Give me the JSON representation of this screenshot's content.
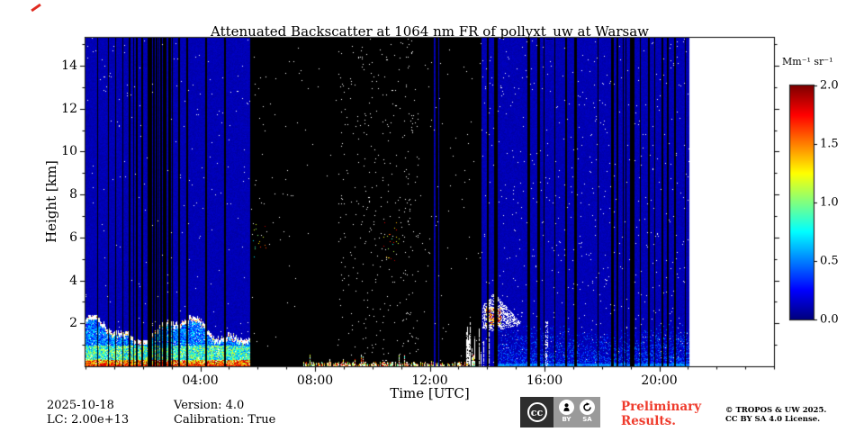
{
  "chart_data": {
    "type": "heatmap",
    "title": "Attenuated Backscatter at 1064 nm FR of pollyxt_uw at Warsaw",
    "xlabel": "Time [UTC]",
    "ylabel": "Height [km]",
    "x_range_hours": [
      0,
      24
    ],
    "x_ticks": [
      {
        "hour": 4,
        "label": "04:00"
      },
      {
        "hour": 8,
        "label": "08:00"
      },
      {
        "hour": 12,
        "label": "12:00"
      },
      {
        "hour": 16,
        "label": "16:00"
      },
      {
        "hour": 20,
        "label": "20:00"
      }
    ],
    "x_minor_tick_every_hours": 1,
    "y_range_km": [
      0,
      15.3
    ],
    "y_ticks": [
      2,
      4,
      6,
      8,
      10,
      12,
      14
    ],
    "y_minor_tick_every_km": 1,
    "colorbar": {
      "label": "Mm⁻¹ sr⁻¹",
      "vmin": 0.0,
      "vmax": 2.0,
      "ticks": [
        0.0,
        0.5,
        1.0,
        1.5,
        2.0
      ],
      "colormap": "jet"
    },
    "seed": 1337,
    "regions": [
      {
        "name": "night-aerosol",
        "hours": [
          0,
          5.75
        ],
        "description": "blue clear air with surface aerosol layer up to ~2.2 km (red/orange near ground, green-yellow mid, white cloud tops), thin black no-data stripes",
        "background_value": 0.1,
        "black_stripe_prob": 0.1,
        "black_gap_hours": [
          2.17,
          2.83
        ],
        "layer_top_km": [
          1.2,
          2.35
        ],
        "white_speckle_density": 0.004
      },
      {
        "name": "daytime-gap",
        "hours": [
          5.75,
          13.8
        ],
        "description": "black no-data block with white noise speckles, intermittent bright surface echo, brief blue columns near 12:10",
        "dense_speckle_hours": [
          8.8,
          11.6
        ],
        "surface_echo_hours": [
          7.6,
          13.6
        ],
        "blue_column_hours": [
          [
            12.15,
            12.21
          ],
          [
            12.29,
            12.34
          ]
        ],
        "colored_dot_hours": [
          [
            5.8,
            6.35
          ],
          [
            10.4,
            10.95
          ]
        ]
      },
      {
        "name": "evening-boundary-layer",
        "hours": [
          13.8,
          21.05
        ],
        "description": "blue clear air with cyan speckled boundary layer below ~1.9 km, cloud with red core near 14:00-15:00 at 2-3.4 km, thin black stripes",
        "background_value": 0.1,
        "black_stripe_prob": 0.13,
        "wide_black_bar_hours": [
          15.45,
          17.1,
          18.35,
          19.05,
          19.65,
          20.3
        ],
        "haze_hours": [
          14.3,
          21.05
        ],
        "haze_top_km": 1.9,
        "haze_values": [
          0.2,
          0.55
        ],
        "cloud": {
          "hours": [
            13.85,
            15.35
          ],
          "base_km": 1.6,
          "top_km": 3.4,
          "core_values": [
            1.1,
            2.0
          ]
        },
        "white_speckle_density": 0.008
      },
      {
        "name": "no-data",
        "hours": [
          21.05,
          24
        ],
        "description": "white, measurement ended"
      }
    ]
  },
  "footer": {
    "date": "2025-10-18",
    "lidar_constant": "LC: 2.00e+13",
    "version": "Version: 4.0",
    "calibration": "Calibration: True",
    "preliminary_line1": "Preliminary",
    "preliminary_line2": "Results.",
    "copyright_line1": "© TROPOS & UW 2025.",
    "copyright_line2": "CC BY SA 4.0 License.",
    "license_badge": {
      "cc": "cc",
      "by": "BY",
      "sa": "SA"
    }
  }
}
